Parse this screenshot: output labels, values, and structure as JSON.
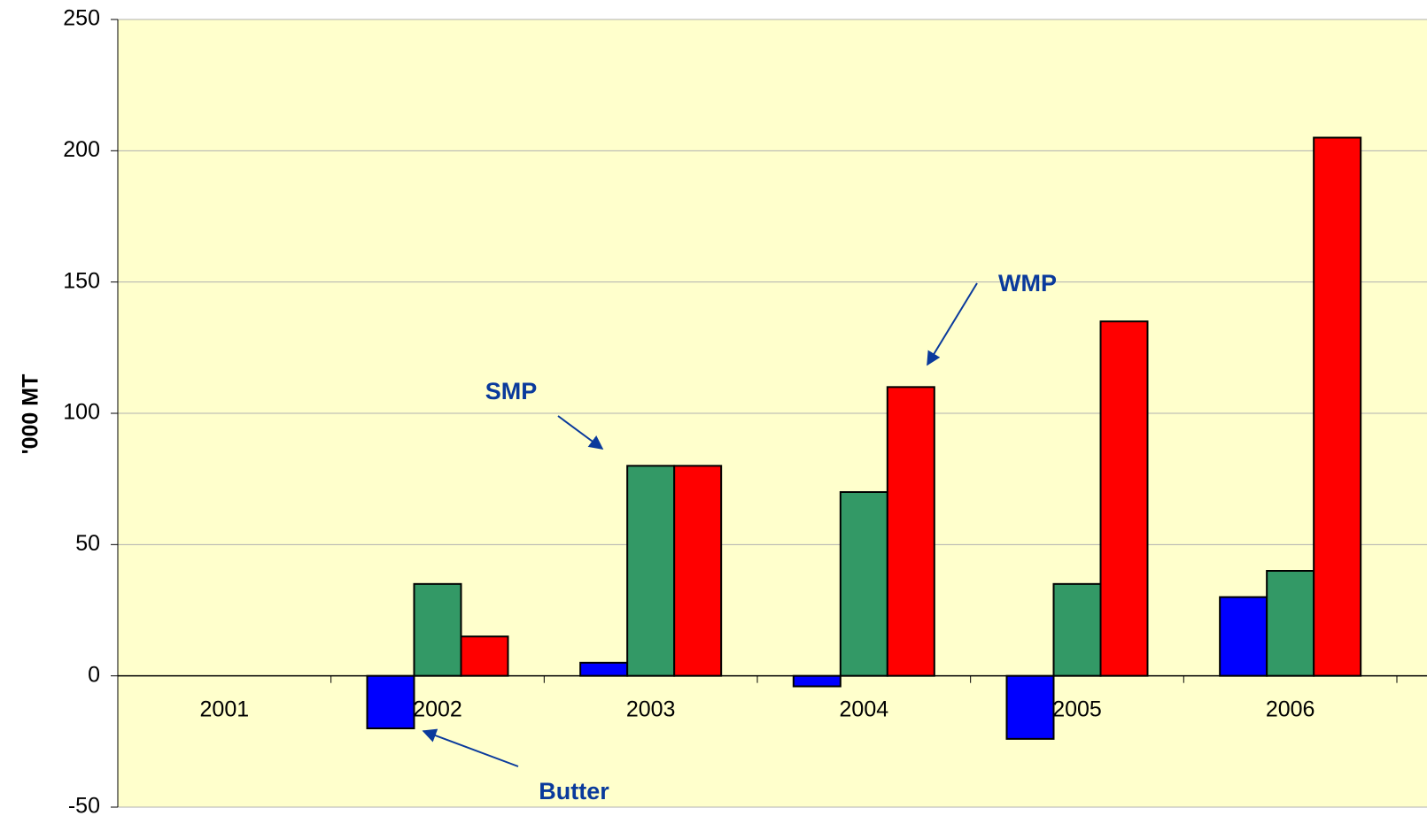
{
  "chart_data": {
    "type": "bar",
    "y_axis_label": "'000 MT",
    "categories": [
      "2001",
      "2002",
      "2003",
      "2004",
      "2005",
      "2006"
    ],
    "series": [
      {
        "name": "Butter",
        "color": "#0000ff",
        "values": [
          0,
          -20,
          5,
          -4,
          -24,
          30
        ]
      },
      {
        "name": "SMP",
        "color": "#339966",
        "values": [
          0,
          35,
          80,
          70,
          35,
          40
        ]
      },
      {
        "name": "WMP",
        "color": "#ff0000",
        "values": [
          0,
          15,
          80,
          110,
          135,
          205
        ]
      }
    ],
    "ylim": [
      -50,
      250
    ],
    "yticks": [
      -50,
      0,
      50,
      100,
      150,
      200,
      250
    ],
    "grid": true
  }
}
